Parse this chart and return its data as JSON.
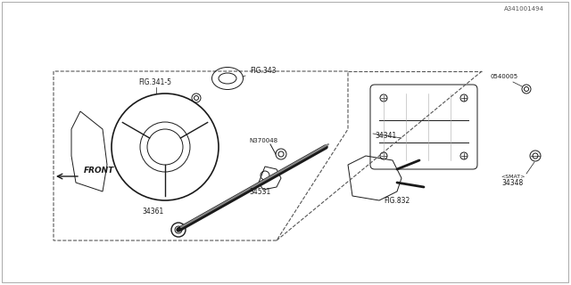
{
  "title": "",
  "background_color": "#ffffff",
  "border_color": "#000000",
  "fig_width": 6.4,
  "fig_height": 3.2,
  "dpi": 100,
  "parts": {
    "part_numbers": [
      "34361",
      "34531",
      "N370048",
      "FIG.832",
      "34348",
      "34341",
      "0540005",
      "FIG.341-5",
      "FIG.343"
    ],
    "watermark": "A341001494",
    "front_label": "FRONT",
    "smat_label": "<SMAT>"
  },
  "colors": {
    "line": "#1a1a1a",
    "fill_light": "#e8e8e8",
    "fill_medium": "#c0c0c0",
    "fill_dark": "#888888",
    "background": "#ffffff",
    "dashed": "#555555"
  }
}
